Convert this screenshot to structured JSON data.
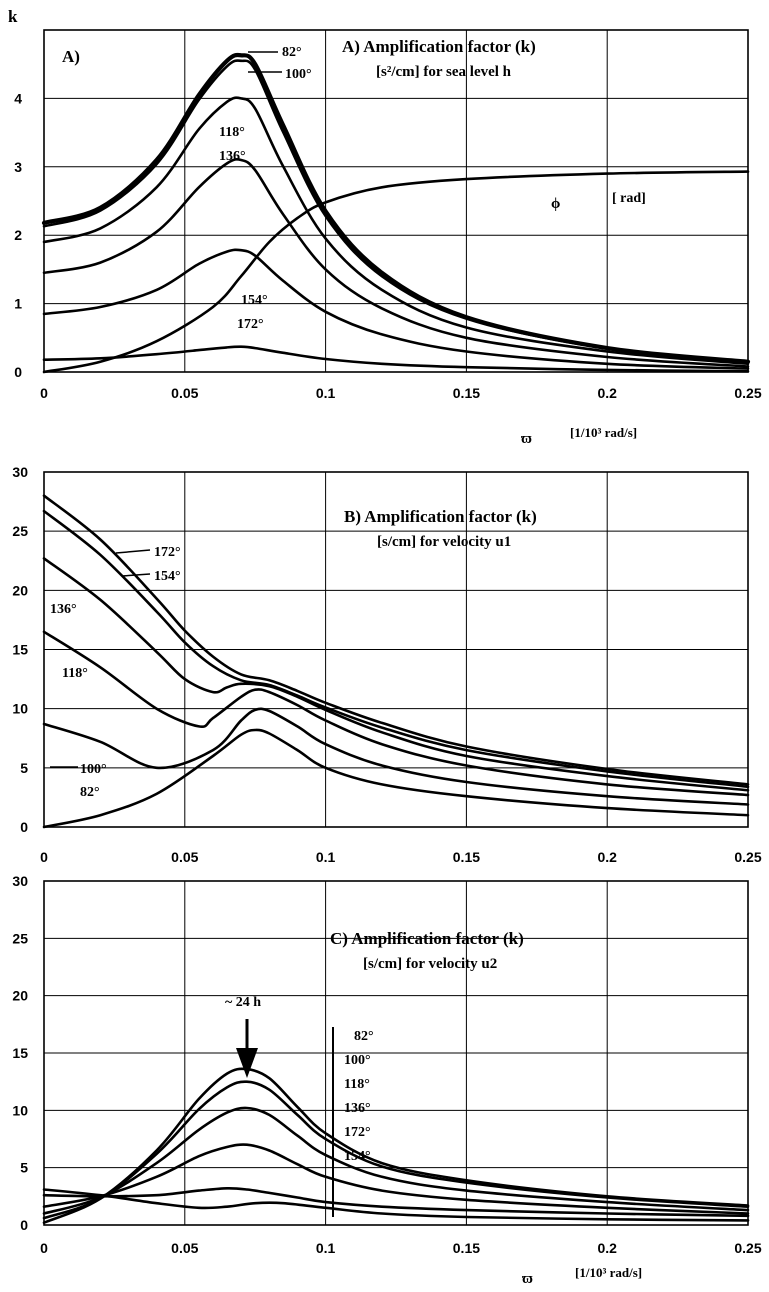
{
  "chart_data": [
    {
      "panel": "A",
      "type": "line",
      "ylabel": "k",
      "corner_label": "A)",
      "title": "A) Amplification factor (k)",
      "subtitle": "[s²/cm] for sea level h",
      "xlabel_symbol": "ϖ",
      "xlabel_unit": "[1/10³ rad/s]",
      "xlim": [
        0,
        0.25
      ],
      "ylim": [
        0,
        5
      ],
      "x_ticks": [
        "0",
        "0.05",
        "0.1",
        "0.15",
        "0.2",
        "0.25"
      ],
      "y_ticks": [
        "0",
        "1",
        "2",
        "3",
        "4"
      ],
      "series": [
        {
          "name": "82°",
          "x": [
            0,
            0.02,
            0.04,
            0.055,
            0.065,
            0.07,
            0.075,
            0.085,
            0.1,
            0.12,
            0.15,
            0.2,
            0.25
          ],
          "y": [
            2.18,
            2.4,
            3.1,
            4.05,
            4.55,
            4.63,
            4.5,
            3.6,
            2.35,
            1.45,
            0.8,
            0.35,
            0.15
          ]
        },
        {
          "name": "100°",
          "x": [
            0,
            0.02,
            0.04,
            0.055,
            0.065,
            0.07,
            0.075,
            0.085,
            0.1,
            0.12,
            0.15,
            0.2,
            0.25
          ],
          "y": [
            2.13,
            2.36,
            3.04,
            3.98,
            4.47,
            4.55,
            4.42,
            3.5,
            2.28,
            1.4,
            0.78,
            0.34,
            0.14
          ]
        },
        {
          "name": "118°",
          "x": [
            0,
            0.02,
            0.04,
            0.055,
            0.065,
            0.07,
            0.075,
            0.085,
            0.1,
            0.12,
            0.15,
            0.2,
            0.25
          ],
          "y": [
            1.9,
            2.1,
            2.7,
            3.55,
            3.95,
            4.0,
            3.85,
            3.0,
            1.95,
            1.2,
            0.65,
            0.3,
            0.12
          ]
        },
        {
          "name": "136°",
          "x": [
            0,
            0.02,
            0.04,
            0.055,
            0.065,
            0.07,
            0.075,
            0.085,
            0.1,
            0.12,
            0.15,
            0.2,
            0.25
          ],
          "y": [
            1.45,
            1.6,
            2.05,
            2.7,
            3.05,
            3.1,
            2.95,
            2.3,
            1.5,
            0.93,
            0.5,
            0.22,
            0.08
          ]
        },
        {
          "name": "154°",
          "x": [
            0,
            0.02,
            0.04,
            0.055,
            0.065,
            0.07,
            0.075,
            0.085,
            0.1,
            0.12,
            0.15,
            0.2,
            0.25
          ],
          "y": [
            0.85,
            0.95,
            1.2,
            1.58,
            1.76,
            1.78,
            1.7,
            1.33,
            0.88,
            0.55,
            0.3,
            0.12,
            0.05
          ]
        },
        {
          "name": "172°",
          "x": [
            0,
            0.02,
            0.04,
            0.055,
            0.065,
            0.07,
            0.075,
            0.085,
            0.1,
            0.12,
            0.15,
            0.2,
            0.25
          ],
          "y": [
            0.18,
            0.2,
            0.26,
            0.32,
            0.36,
            0.37,
            0.35,
            0.28,
            0.19,
            0.12,
            0.07,
            0.03,
            0.01
          ]
        },
        {
          "name": "ϕ [ rad]",
          "x": [
            0,
            0.02,
            0.04,
            0.06,
            0.07,
            0.08,
            0.09,
            0.1,
            0.12,
            0.15,
            0.2,
            0.25
          ],
          "y": [
            0.0,
            0.15,
            0.45,
            0.95,
            1.4,
            1.9,
            2.25,
            2.48,
            2.7,
            2.82,
            2.9,
            2.93
          ]
        }
      ],
      "labels": {
        "s82": "82°",
        "s100": "100°",
        "s118": "118°",
        "s136": "136°",
        "s154": "154°",
        "s172": "172°",
        "phi": "ϕ",
        "phi_unit": "[ rad]"
      }
    },
    {
      "panel": "B",
      "type": "line",
      "title": "B) Amplification factor (k)",
      "subtitle": "[s/cm] for velocity u1",
      "xlim": [
        0,
        0.25
      ],
      "ylim": [
        0,
        30
      ],
      "x_ticks": [
        "0",
        "0.05",
        "0.1",
        "0.15",
        "0.2",
        "0.25"
      ],
      "y_ticks": [
        "0",
        "5",
        "10",
        "15",
        "20",
        "25",
        "30"
      ],
      "series": [
        {
          "name": "82°",
          "x": [
            0,
            0.02,
            0.04,
            0.06,
            0.07,
            0.075,
            0.08,
            0.09,
            0.1,
            0.12,
            0.15,
            0.2,
            0.25
          ],
          "y": [
            0,
            1.0,
            2.8,
            6.0,
            7.8,
            8.2,
            7.9,
            6.5,
            5.0,
            3.6,
            2.6,
            1.6,
            1.0
          ]
        },
        {
          "name": "100°",
          "x": [
            0,
            0.02,
            0.04,
            0.06,
            0.07,
            0.075,
            0.08,
            0.09,
            0.1,
            0.12,
            0.15,
            0.2,
            0.25
          ],
          "y": [
            8.7,
            7.2,
            5.0,
            6.5,
            9.0,
            9.9,
            9.8,
            8.5,
            7.0,
            5.2,
            3.8,
            2.6,
            1.9
          ]
        },
        {
          "name": "118°",
          "x": [
            0,
            0.02,
            0.04,
            0.055,
            0.06,
            0.07,
            0.075,
            0.08,
            0.09,
            0.1,
            0.12,
            0.15,
            0.2,
            0.25
          ],
          "y": [
            16.5,
            13.5,
            10.0,
            8.5,
            9.2,
            11.0,
            11.6,
            11.4,
            10.3,
            9.0,
            7.0,
            5.2,
            3.6,
            2.7
          ]
        },
        {
          "name": "136°",
          "x": [
            0,
            0.02,
            0.04,
            0.05,
            0.06,
            0.065,
            0.07,
            0.08,
            0.09,
            0.1,
            0.12,
            0.15,
            0.2,
            0.25
          ],
          "y": [
            22.7,
            19.2,
            14.8,
            12.5,
            11.4,
            11.8,
            12.1,
            11.9,
            11.0,
            9.9,
            8.0,
            6.0,
            4.3,
            3.1
          ]
        },
        {
          "name": "154°",
          "x": [
            0,
            0.02,
            0.04,
            0.05,
            0.06,
            0.07,
            0.08,
            0.09,
            0.1,
            0.12,
            0.15,
            0.2,
            0.25
          ],
          "y": [
            26.7,
            23.0,
            18.2,
            15.6,
            13.6,
            12.4,
            12.0,
            11.1,
            10.1,
            8.4,
            6.5,
            4.7,
            3.4
          ]
        },
        {
          "name": "172°",
          "x": [
            0,
            0.02,
            0.04,
            0.05,
            0.06,
            0.07,
            0.08,
            0.09,
            0.1,
            0.12,
            0.15,
            0.2,
            0.25
          ],
          "y": [
            28.0,
            24.3,
            19.3,
            16.6,
            14.4,
            12.9,
            12.4,
            11.5,
            10.5,
            8.8,
            6.8,
            4.9,
            3.6
          ]
        }
      ],
      "labels": {
        "s172": "172°",
        "s154": "154°",
        "s136": "136°",
        "s118": "118°",
        "s100": "100°",
        "s82": "82°"
      }
    },
    {
      "panel": "C",
      "type": "line",
      "title": "C) Amplification factor (k)",
      "subtitle": "[s/cm] for velocity u2",
      "xlabel_symbol": "ϖ",
      "xlabel_unit": "[1/10³ rad/s]",
      "xlim": [
        0,
        0.25
      ],
      "ylim": [
        0,
        30
      ],
      "x_ticks": [
        "0",
        "0.05",
        "0.1",
        "0.15",
        "0.2",
        "0.25"
      ],
      "y_ticks": [
        "0",
        "5",
        "10",
        "15",
        "20",
        "25",
        "30"
      ],
      "annotation": "~ 24 h",
      "arrow_x": 0.0725,
      "series": [
        {
          "name": "82°",
          "x": [
            0,
            0.02,
            0.04,
            0.055,
            0.065,
            0.072,
            0.08,
            0.09,
            0.1,
            0.12,
            0.15,
            0.2,
            0.25
          ],
          "y": [
            0.2,
            2.3,
            6.5,
            11.0,
            13.2,
            13.6,
            12.8,
            10.3,
            8.0,
            5.4,
            3.9,
            2.5,
            1.7
          ]
        },
        {
          "name": "100°",
          "x": [
            0,
            0.02,
            0.04,
            0.055,
            0.065,
            0.072,
            0.08,
            0.09,
            0.1,
            0.12,
            0.15,
            0.2,
            0.25
          ],
          "y": [
            0.6,
            2.3,
            6.2,
            10.1,
            12.0,
            12.5,
            11.8,
            9.6,
            7.5,
            5.1,
            3.7,
            2.4,
            1.6
          ]
        },
        {
          "name": "118°",
          "x": [
            0,
            0.02,
            0.04,
            0.055,
            0.065,
            0.072,
            0.08,
            0.09,
            0.1,
            0.12,
            0.15,
            0.2,
            0.25
          ],
          "y": [
            1.0,
            2.4,
            5.4,
            8.3,
            9.8,
            10.2,
            9.6,
            7.8,
            6.1,
            4.2,
            3.0,
            2.0,
            1.3
          ]
        },
        {
          "name": "136°",
          "x": [
            0,
            0.02,
            0.04,
            0.055,
            0.065,
            0.072,
            0.08,
            0.09,
            0.1,
            0.12,
            0.15,
            0.2,
            0.25
          ],
          "y": [
            1.6,
            2.5,
            4.2,
            6.0,
            6.8,
            7.0,
            6.5,
            5.3,
            4.2,
            3.0,
            2.2,
            1.5,
            1.0
          ]
        },
        {
          "name": "172°",
          "x": [
            0,
            0.02,
            0.04,
            0.055,
            0.065,
            0.072,
            0.08,
            0.09,
            0.1,
            0.12,
            0.15,
            0.2,
            0.25
          ],
          "y": [
            2.6,
            2.5,
            2.6,
            3.0,
            3.2,
            3.1,
            2.8,
            2.4,
            2.0,
            1.6,
            1.3,
            1.0,
            0.8
          ]
        },
        {
          "name": "154°",
          "x": [
            0,
            0.02,
            0.04,
            0.055,
            0.065,
            0.075,
            0.085,
            0.1,
            0.12,
            0.15,
            0.2,
            0.25
          ],
          "y": [
            3.1,
            2.6,
            1.9,
            1.5,
            1.6,
            1.9,
            1.9,
            1.5,
            1.0,
            0.7,
            0.5,
            0.4
          ]
        }
      ],
      "labels": {
        "s82": "82°",
        "s100": "100°",
        "s118": "118°",
        "s136": "136°",
        "s172": "172°",
        "s154": "154°"
      }
    }
  ]
}
